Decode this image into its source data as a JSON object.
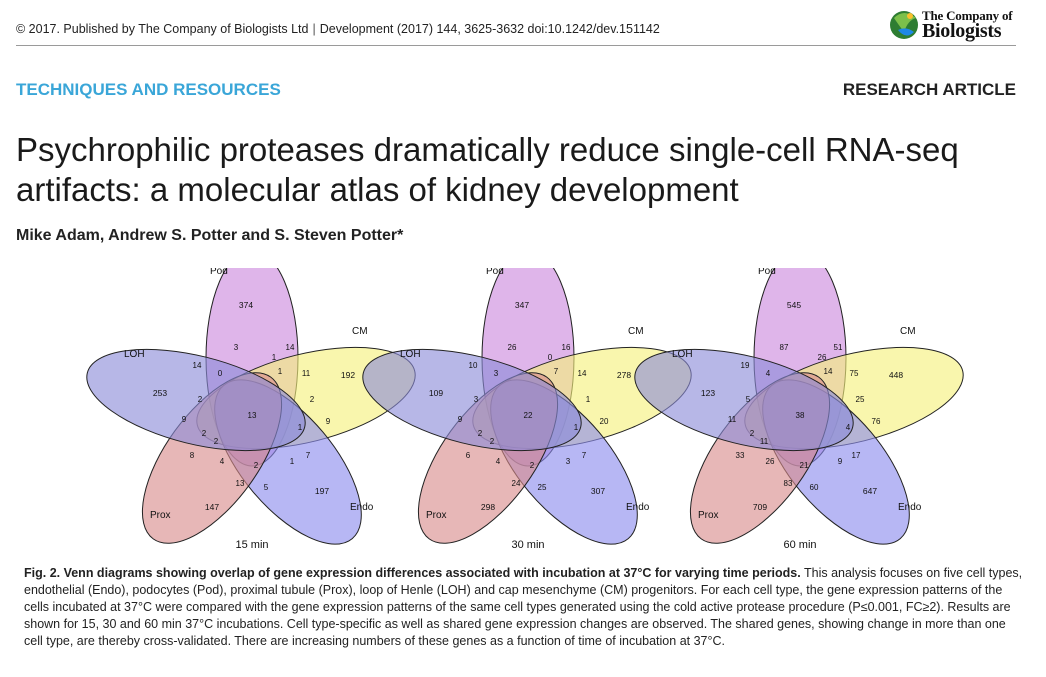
{
  "header": {
    "copyright": "© 2017. Published by The Company of Biologists Ltd",
    "journal_ref": "Development (2017) 144, 3625-3632 doi:10.1242/dev.151142",
    "logo_line1": "The Company of",
    "logo_line2": "Biologists"
  },
  "section_label": "TECHNIQUES AND RESOURCES",
  "article_type": "RESEARCH ARTICLE",
  "title_line1": "Psychrophilic proteases dramatically reduce single-cell RNA-seq",
  "title_line2": "artifacts: a molecular atlas of kidney development",
  "authors": "Mike Adam, Andrew S. Potter and S. Steven Potter*",
  "figure": {
    "set_labels": {
      "pod": "Pod",
      "cm": "CM",
      "loh": "LOH",
      "prox": "Prox",
      "endo": "Endo"
    },
    "colors": {
      "pod": "#cc88dd",
      "cm": "#f5f07a",
      "loh": "#8a8ad8",
      "prox": "#d88a8a",
      "endo": "#8a8aee"
    },
    "panels": [
      {
        "label": "15 min",
        "counts": {
          "pod": "374",
          "cm": "192",
          "loh": "253",
          "prox": "147",
          "endo": "197",
          "center": "13",
          "pod_loh": "14",
          "pod_cm": "14",
          "cm_a": "2",
          "cm_endo": "9",
          "endo_prox": "5",
          "prox_loh": "8",
          "loh_cm": "9",
          "i1": "3",
          "i2": "1",
          "i3": "1",
          "i4": "11",
          "i5": "0",
          "i6": "2",
          "i7": "1",
          "i8": "7",
          "i9": "2",
          "i10": "4",
          "i11": "13",
          "i12": "1",
          "i13": "2",
          "i14": "2"
        }
      },
      {
        "label": "30 min",
        "counts": {
          "pod": "347",
          "cm": "278",
          "loh": "109",
          "prox": "298",
          "endo": "307",
          "center": "22",
          "pod_loh": "10",
          "pod_cm": "16",
          "cm_a": "1",
          "cm_endo": "20",
          "endo_prox": "25",
          "prox_loh": "6",
          "loh_cm": "9",
          "i1": "26",
          "i2": "0",
          "i3": "7",
          "i4": "14",
          "i5": "3",
          "i6": "3",
          "i7": "3",
          "i8": "7",
          "i9": "2",
          "i10": "4",
          "i11": "24",
          "i12": "1",
          "i13": "2",
          "i14": "2"
        }
      },
      {
        "label": "60 min",
        "counts": {
          "pod": "545",
          "cm": "448",
          "loh": "123",
          "prox": "709",
          "endo": "647",
          "center": "38",
          "pod_loh": "19",
          "pod_cm": "51",
          "cm_a": "25",
          "cm_endo": "76",
          "endo_prox": "60",
          "prox_loh": "33",
          "loh_cm": "11",
          "i1": "87",
          "i2": "26",
          "i3": "14",
          "i4": "75",
          "i5": "4",
          "i6": "5",
          "i7": "9",
          "i8": "17",
          "i9": "21",
          "i10": "26",
          "i11": "83",
          "i12": "4",
          "i13": "2",
          "i14": "11"
        }
      }
    ]
  },
  "caption": {
    "bold": "Fig. 2. Venn diagrams showing overlap of gene expression differences associated with incubation at 37°C for varying time periods.",
    "text": " This analysis focuses on five cell types, endothelial (Endo), podocytes (Pod), proximal tubule (Prox), loop of Henle (LOH) and cap mesenchyme (CM) progenitors. For each cell type, the gene expression patterns of the cells incubated at 37°C were compared with the gene expression patterns of the same cell types generated using the cold active protease procedure (P≤0.001, FC≥2). Results are shown for 15, 30 and 60 min 37°C incubations. Cell type-specific as well as shared gene expression changes are observed. The shared genes, showing change in more than one cell type, are thereby cross-validated. There are increasing numbers of these genes as a function of time of incubation at 37°C."
  }
}
